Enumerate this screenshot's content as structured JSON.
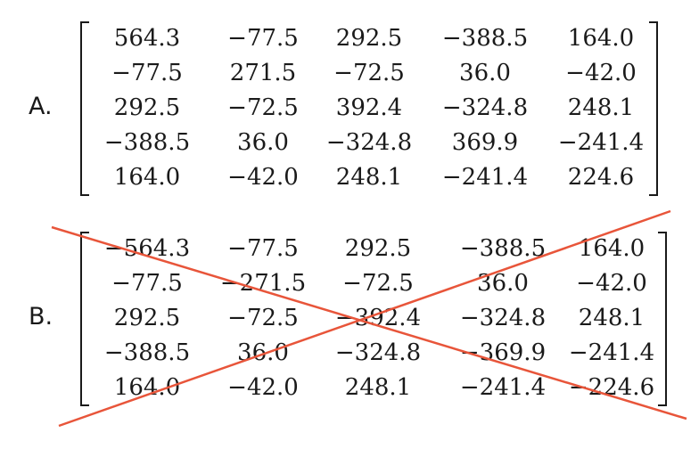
{
  "options": [
    {
      "label": "A.",
      "crossed_out": false,
      "rows": [
        [
          "564.3",
          "−77.5",
          "292.5",
          "−388.5",
          "164.0"
        ],
        [
          "−77.5",
          "271.5",
          "−72.5",
          "36.0",
          "−42.0"
        ],
        [
          "292.5",
          "−72.5",
          "392.4",
          "−324.8",
          "248.1"
        ],
        [
          "−388.5",
          "36.0",
          "−324.8",
          "369.9",
          "−241.4"
        ],
        [
          "164.0",
          "−42.0",
          "248.1",
          "−241.4",
          "224.6"
        ]
      ]
    },
    {
      "label": "B.",
      "crossed_out": true,
      "rows": [
        [
          "−564.3",
          "−77.5",
          "292.5",
          "−388.5",
          "164.0"
        ],
        [
          "−77.5",
          "−271.5",
          "−72.5",
          "36.0",
          "−42.0"
        ],
        [
          "292.5",
          "−72.5",
          "−392.4",
          "−324.8",
          "248.1"
        ],
        [
          "−388.5",
          "36.0",
          "−324.8",
          "−369.9",
          "−241.4"
        ],
        [
          "164.0",
          "−42.0",
          "248.1",
          "−241.4",
          "−224.6"
        ]
      ]
    }
  ],
  "cross_color": "#e8553a"
}
